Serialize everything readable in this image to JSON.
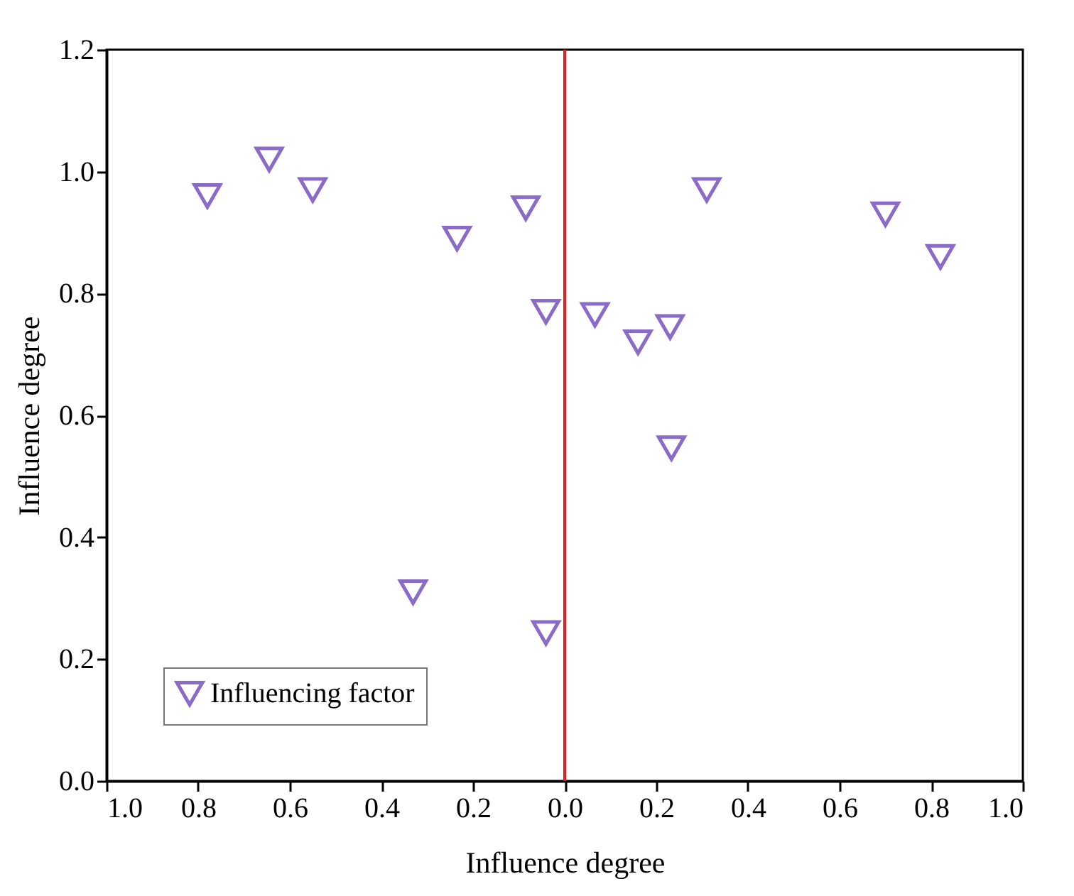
{
  "chart_data": {
    "type": "scatter",
    "xlabel": "Influence degree",
    "ylabel": "Influence degree",
    "series": [
      {
        "name": "Influencing factor",
        "color": "#8a6cc8",
        "x": [
          -0.78,
          -0.645,
          -0.55,
          -0.235,
          -0.085,
          -0.041,
          0.31,
          0.7,
          0.82,
          0.066,
          0.16,
          0.23,
          0.233,
          -0.331,
          -0.041
        ],
        "values": [
          0.96,
          1.02,
          0.97,
          0.89,
          0.94,
          0.77,
          0.97,
          0.93,
          0.86,
          0.765,
          0.72,
          0.745,
          0.546,
          0.31,
          0.243
        ]
      }
    ],
    "marker": "triangle",
    "legend": "bottom left",
    "grid": false,
    "xlim": [
      -1,
      1
    ],
    "xticks": [
      {
        "value": -1,
        "label": "1.0"
      },
      {
        "value": -0.8,
        "label": "0.8"
      },
      {
        "value": -0.6,
        "label": "0.6"
      },
      {
        "value": -0.4,
        "label": "0.4"
      },
      {
        "value": -0.2,
        "label": "0.2"
      },
      {
        "value": 0,
        "label": "0.0"
      },
      {
        "value": 0.2,
        "label": "0.2"
      },
      {
        "value": 0.4,
        "label": "0.4"
      },
      {
        "value": 0.6,
        "label": "0.6"
      },
      {
        "value": 0.8,
        "label": "0.8"
      },
      {
        "value": 1,
        "label": "1.0"
      }
    ],
    "ylim": [
      0,
      1.2
    ],
    "yticks": [
      {
        "value": 0,
        "label": "0.0"
      },
      {
        "value": 0.2,
        "label": "0.2"
      },
      {
        "value": 0.4,
        "label": "0.4"
      },
      {
        "value": 0.6,
        "label": "0.6"
      },
      {
        "value": 0.8,
        "label": "0.8"
      },
      {
        "value": 1,
        "label": "1.0"
      },
      {
        "value": 1.2,
        "label": "1.2"
      }
    ],
    "ref_lines": [
      {
        "axis": "x",
        "value": 0,
        "color": "#e02020"
      }
    ]
  }
}
